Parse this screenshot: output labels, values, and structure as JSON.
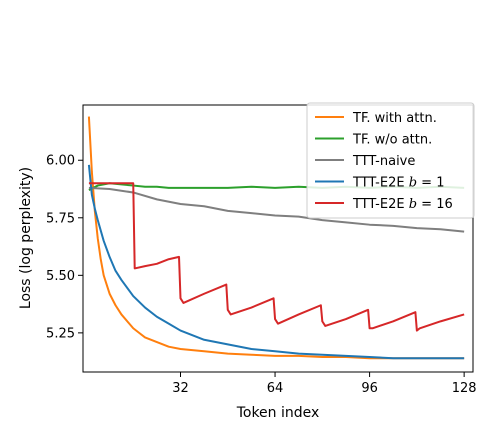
{
  "chart_data": {
    "type": "line",
    "xlabel": "Token index",
    "ylabel": "Loss (log perplexity)",
    "xlim": [
      -1,
      131
    ],
    "ylim": [
      5.08,
      6.24
    ],
    "xticks": [
      32,
      64,
      96,
      128
    ],
    "xtick_labels": [
      "32",
      "64",
      "96",
      "128"
    ],
    "yticks": [
      5.25,
      5.5,
      5.75,
      6.0
    ],
    "ytick_labels": [
      "5.25",
      "5.50",
      "5.75",
      "6.00"
    ],
    "legend_position": "top-right",
    "grid": false,
    "series": [
      {
        "name": "TF. with attn.",
        "color": "#ff7f0e",
        "x": [
          1,
          2,
          3,
          4,
          5,
          6,
          8,
          10,
          12,
          14,
          16,
          18,
          20,
          24,
          28,
          32,
          40,
          48,
          56,
          64,
          72,
          80,
          88,
          96,
          104,
          112,
          120,
          128
        ],
        "y": [
          6.19,
          5.95,
          5.78,
          5.66,
          5.57,
          5.5,
          5.42,
          5.37,
          5.33,
          5.3,
          5.27,
          5.25,
          5.23,
          5.21,
          5.19,
          5.18,
          5.17,
          5.16,
          5.155,
          5.15,
          5.15,
          5.145,
          5.145,
          5.14,
          5.14,
          5.14,
          5.14,
          5.14
        ]
      },
      {
        "name": "TF. w/o attn.",
        "color": "#2ca02c",
        "x": [
          1,
          4,
          8,
          12,
          16,
          20,
          24,
          28,
          32,
          40,
          48,
          56,
          64,
          72,
          80,
          88,
          96,
          104,
          112,
          120,
          128
        ],
        "y": [
          5.87,
          5.89,
          5.9,
          5.895,
          5.89,
          5.885,
          5.885,
          5.88,
          5.88,
          5.88,
          5.88,
          5.885,
          5.88,
          5.885,
          5.88,
          5.885,
          5.88,
          5.885,
          5.88,
          5.885,
          5.88
        ]
      },
      {
        "name": "TTT-naive",
        "color": "#7f7f7f",
        "x": [
          1,
          8,
          16,
          24,
          32,
          40,
          48,
          56,
          64,
          72,
          80,
          88,
          96,
          104,
          112,
          120,
          128
        ],
        "y": [
          5.88,
          5.875,
          5.86,
          5.83,
          5.81,
          5.8,
          5.78,
          5.77,
          5.76,
          5.755,
          5.74,
          5.73,
          5.72,
          5.715,
          5.705,
          5.7,
          5.69
        ]
      },
      {
        "name": "TTT-E2E b = 1",
        "label_prefix": "TTT-E2E ",
        "label_var": "b",
        "label_suffix": " = 1",
        "color": "#1f77b4",
        "x": [
          1,
          2,
          3,
          4,
          6,
          8,
          10,
          12,
          16,
          20,
          24,
          28,
          32,
          40,
          48,
          56,
          64,
          72,
          80,
          88,
          96,
          104,
          112,
          120,
          128
        ],
        "y": [
          5.98,
          5.85,
          5.79,
          5.74,
          5.65,
          5.58,
          5.52,
          5.48,
          5.41,
          5.36,
          5.32,
          5.29,
          5.26,
          5.22,
          5.2,
          5.18,
          5.17,
          5.16,
          5.155,
          5.15,
          5.145,
          5.14,
          5.14,
          5.14,
          5.14
        ]
      },
      {
        "name": "TTT-E2E b = 16",
        "label_prefix": "TTT-E2E ",
        "label_var": "b",
        "label_suffix": " = 16",
        "color": "#d62728",
        "x": [
          1,
          16,
          16.5,
          20,
          24,
          28,
          31.5,
          32,
          33,
          40,
          47.5,
          48,
          49,
          56,
          63.5,
          64,
          65,
          72,
          79.5,
          80,
          81,
          88,
          95.5,
          96,
          97,
          104,
          111.5,
          112,
          113,
          120,
          128
        ],
        "y": [
          5.9,
          5.9,
          5.53,
          5.54,
          5.55,
          5.57,
          5.58,
          5.4,
          5.38,
          5.42,
          5.46,
          5.35,
          5.33,
          5.36,
          5.4,
          5.31,
          5.29,
          5.33,
          5.37,
          5.3,
          5.28,
          5.31,
          5.35,
          5.27,
          5.27,
          5.3,
          5.34,
          5.26,
          5.27,
          5.3,
          5.33
        ]
      }
    ]
  }
}
